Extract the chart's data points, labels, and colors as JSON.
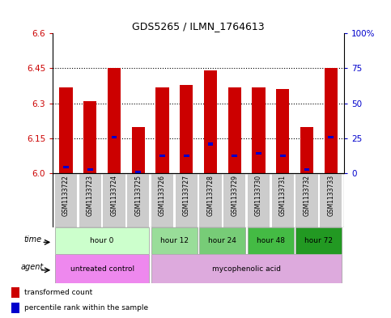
{
  "title": "GDS5265 / ILMN_1764613",
  "samples": [
    "GSM1133722",
    "GSM1133723",
    "GSM1133724",
    "GSM1133725",
    "GSM1133726",
    "GSM1133727",
    "GSM1133728",
    "GSM1133729",
    "GSM1133730",
    "GSM1133731",
    "GSM1133732",
    "GSM1133733"
  ],
  "bar_values": [
    6.37,
    6.31,
    6.45,
    6.2,
    6.37,
    6.38,
    6.44,
    6.37,
    6.37,
    6.36,
    6.2,
    6.45
  ],
  "percentile_values": [
    6.02,
    6.01,
    6.15,
    6.0,
    6.07,
    6.07,
    6.12,
    6.07,
    6.08,
    6.07,
    6.01,
    6.15
  ],
  "ymin": 6.0,
  "ymax": 6.6,
  "yticks": [
    6.0,
    6.15,
    6.3,
    6.45,
    6.6
  ],
  "y2min": 0,
  "y2max": 100,
  "y2ticks": [
    0,
    25,
    50,
    75,
    100
  ],
  "bar_color": "#cc0000",
  "percentile_color": "#0000cc",
  "bar_width": 0.55,
  "time_groups": [
    {
      "label": "hour 0",
      "start": 0,
      "end": 3
    },
    {
      "label": "hour 12",
      "start": 4,
      "end": 5
    },
    {
      "label": "hour 24",
      "start": 6,
      "end": 7
    },
    {
      "label": "hour 48",
      "start": 8,
      "end": 9
    },
    {
      "label": "hour 72",
      "start": 10,
      "end": 11
    }
  ],
  "time_colors": [
    "#ccffcc",
    "#99dd99",
    "#77cc77",
    "#44bb44",
    "#229922"
  ],
  "agent_groups": [
    {
      "label": "untreated control",
      "start": 0,
      "end": 3
    },
    {
      "label": "mycophenolic acid",
      "start": 4,
      "end": 11
    }
  ],
  "agent_colors": [
    "#ee88ee",
    "#ddaadd"
  ],
  "legend_items": [
    {
      "label": "transformed count",
      "color": "#cc0000"
    },
    {
      "label": "percentile rank within the sample",
      "color": "#0000cc"
    }
  ],
  "bg_color": "#ffffff",
  "sample_bg_color": "#cccccc"
}
